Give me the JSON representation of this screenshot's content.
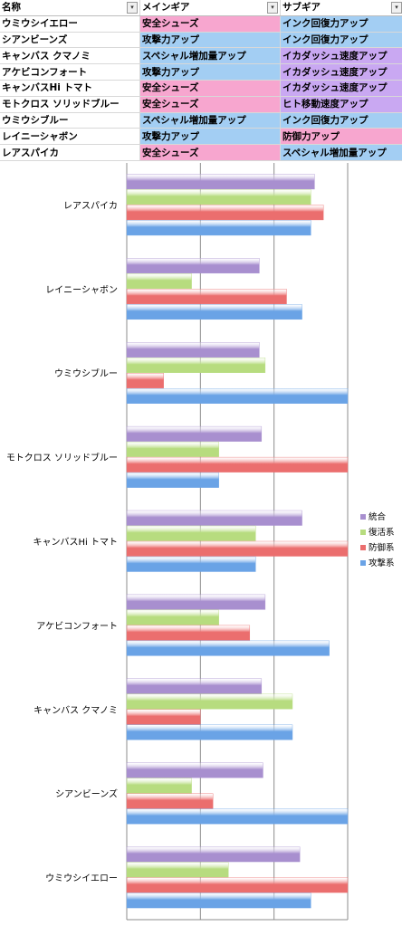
{
  "table": {
    "headers": [
      "名称",
      "メインギア",
      "サブギア"
    ],
    "rows": [
      {
        "name": "ウミウシイエロー",
        "main": "安全シューズ",
        "sub": "インク回復力アップ"
      },
      {
        "name": "シアンビーンズ",
        "main": "攻撃力アップ",
        "sub": "インク回復力アップ"
      },
      {
        "name": "キャンバス クマノミ",
        "main": "スペシャル増加量アップ",
        "sub": "イカダッシュ速度アップ"
      },
      {
        "name": "アケビコンフォート",
        "main": "攻撃力アップ",
        "sub": "イカダッシュ速度アップ"
      },
      {
        "name": "キャンバスHi トマト",
        "main": "安全シューズ",
        "sub": "イカダッシュ速度アップ"
      },
      {
        "name": "モトクロス ソリッドブルー",
        "main": "安全シューズ",
        "sub": "ヒト移動速度アップ"
      },
      {
        "name": "ウミウシブルー",
        "main": "スペシャル増加量アップ",
        "sub": "インク回復力アップ"
      },
      {
        "name": "レイニーシャボン",
        "main": "攻撃力アップ",
        "sub": "防御力アップ"
      },
      {
        "name": "レアスパイカ",
        "main": "安全シューズ",
        "sub": "スペシャル増加量アップ"
      }
    ],
    "cell_colors": {
      "安全シューズ": "#f7a6cf",
      "攻撃力アップ": "#a3cef3",
      "スペシャル増加量アップ": "#a3cef3",
      "インク回復力アップ": "#a3cef3",
      "イカダッシュ速度アップ": "#c9a8f2",
      "ヒト移動速度アップ": "#c9a8f2",
      "防御力アップ": "#f7a6cf"
    }
  },
  "chart_data": {
    "type": "bar",
    "orientation": "horizontal",
    "categories": [
      "レアスパイカ",
      "レイニーシャボン",
      "ウミウシブルー",
      "モトクロス ソリッドブルー",
      "キャンバスHi トマト",
      "アケビコンフォート",
      "キャンバス クマノミ",
      "シアンビーンズ",
      "ウミウシイエロー"
    ],
    "series": [
      {
        "name": "統合",
        "color": "#a88fcf",
        "values": [
          2.55,
          1.8,
          1.8,
          1.83,
          2.38,
          1.88,
          1.83,
          1.85,
          2.35
        ]
      },
      {
        "name": "復活系",
        "color": "#b7dc7f",
        "values": [
          2.5,
          0.88,
          1.88,
          1.25,
          1.75,
          1.25,
          2.25,
          0.88,
          1.38
        ]
      },
      {
        "name": "防御系",
        "color": "#eb6e6e",
        "values": [
          2.67,
          2.17,
          0.5,
          3.0,
          3.0,
          1.67,
          1.0,
          1.17,
          3.0
        ]
      },
      {
        "name": "攻撃系",
        "color": "#6aa3e6",
        "values": [
          2.5,
          2.38,
          3.0,
          1.25,
          1.75,
          2.75,
          2.25,
          3.0,
          2.5
        ]
      }
    ],
    "xlim": [
      0,
      3
    ],
    "grid": true,
    "legend_position": "right"
  }
}
